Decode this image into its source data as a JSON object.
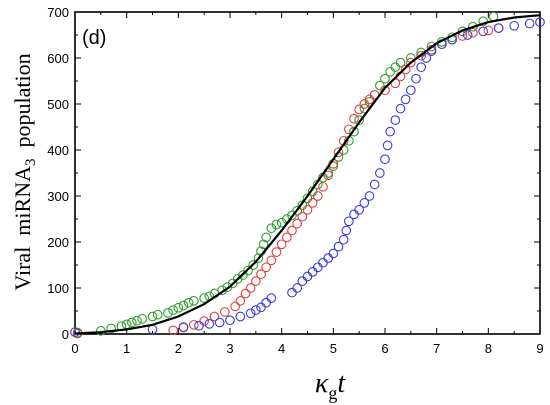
{
  "chart_data": {
    "type": "scatter",
    "panel_label": "(d)",
    "xlabel": {
      "main": "κ",
      "sub": "g",
      "rest": "t"
    },
    "ylabel": {
      "main": "Viral  miRNA",
      "sub": "3",
      "rest": "  population"
    },
    "xlim": [
      0,
      9
    ],
    "ylim": [
      0,
      700
    ],
    "x_ticks": [
      "0",
      "1",
      "2",
      "3",
      "4",
      "5",
      "6",
      "7",
      "8",
      "9"
    ],
    "y_ticks": [
      "0",
      "100",
      "200",
      "300",
      "400",
      "500",
      "600",
      "700"
    ],
    "grid": false,
    "series": [
      {
        "color": "#2ca02c",
        "marker": "open-circle",
        "points": [
          [
            0.05,
            3
          ],
          [
            0.5,
            7
          ],
          [
            0.7,
            12
          ],
          [
            0.9,
            17
          ],
          [
            1.0,
            21
          ],
          [
            1.1,
            25
          ],
          [
            1.2,
            29
          ],
          [
            1.3,
            33
          ],
          [
            1.5,
            38
          ],
          [
            1.6,
            42
          ],
          [
            1.8,
            46
          ],
          [
            1.9,
            52
          ],
          [
            2.0,
            57
          ],
          [
            2.1,
            62
          ],
          [
            2.2,
            68
          ],
          [
            2.3,
            72
          ],
          [
            2.5,
            78
          ],
          [
            2.6,
            82
          ],
          [
            2.7,
            88
          ],
          [
            2.85,
            95
          ],
          [
            2.95,
            102
          ],
          [
            3.05,
            110
          ],
          [
            3.15,
            120
          ],
          [
            3.25,
            128
          ],
          [
            3.35,
            138
          ],
          [
            3.45,
            150
          ],
          [
            3.55,
            165
          ],
          [
            3.6,
            180
          ],
          [
            3.65,
            195
          ],
          [
            3.7,
            210
          ],
          [
            3.8,
            230
          ],
          [
            3.9,
            238
          ],
          [
            4.0,
            242
          ],
          [
            4.1,
            250
          ],
          [
            4.2,
            258
          ],
          [
            4.3,
            268
          ],
          [
            4.4,
            280
          ],
          [
            4.5,
            295
          ],
          [
            4.6,
            310
          ],
          [
            4.7,
            325
          ],
          [
            4.8,
            340
          ],
          [
            4.9,
            350
          ],
          [
            5.0,
            365
          ],
          [
            5.1,
            385
          ],
          [
            5.2,
            400
          ],
          [
            5.3,
            420
          ],
          [
            5.4,
            440
          ],
          [
            5.5,
            465
          ],
          [
            5.6,
            490
          ],
          [
            5.7,
            505
          ],
          [
            5.8,
            520
          ],
          [
            5.9,
            540
          ],
          [
            6.0,
            555
          ],
          [
            6.1,
            570
          ],
          [
            6.2,
            580
          ],
          [
            6.3,
            590
          ],
          [
            6.5,
            600
          ],
          [
            6.7,
            612
          ],
          [
            6.9,
            625
          ],
          [
            7.1,
            635
          ],
          [
            7.3,
            645
          ],
          [
            7.5,
            658
          ],
          [
            7.7,
            668
          ],
          [
            7.9,
            680
          ],
          [
            8.1,
            690
          ]
        ]
      },
      {
        "color": "#e04040",
        "marker": "open-circle",
        "points": [
          [
            0.05,
            1
          ],
          [
            1.9,
            8
          ],
          [
            2.1,
            14
          ],
          [
            2.3,
            20
          ],
          [
            2.5,
            28
          ],
          [
            2.7,
            38
          ],
          [
            2.9,
            48
          ],
          [
            3.1,
            60
          ],
          [
            3.2,
            72
          ],
          [
            3.3,
            88
          ],
          [
            3.4,
            100
          ],
          [
            3.5,
            115
          ],
          [
            3.6,
            130
          ],
          [
            3.7,
            145
          ],
          [
            3.8,
            160
          ],
          [
            3.9,
            178
          ],
          [
            4.0,
            195
          ],
          [
            4.1,
            210
          ],
          [
            4.2,
            225
          ],
          [
            4.3,
            240
          ],
          [
            4.4,
            255
          ],
          [
            4.5,
            270
          ],
          [
            4.6,
            285
          ],
          [
            4.7,
            300
          ],
          [
            4.8,
            320
          ],
          [
            4.9,
            345
          ],
          [
            5.0,
            370
          ],
          [
            5.1,
            395
          ],
          [
            5.2,
            420
          ],
          [
            5.3,
            445
          ],
          [
            5.4,
            468
          ],
          [
            5.5,
            488
          ],
          [
            5.6,
            500
          ],
          [
            5.7,
            510
          ],
          [
            5.8,
            520
          ],
          [
            6.0,
            530
          ],
          [
            6.2,
            545
          ],
          [
            6.3,
            560
          ],
          [
            6.4,
            575
          ],
          [
            6.5,
            590
          ],
          [
            6.7,
            605
          ],
          [
            6.9,
            618
          ],
          [
            7.1,
            630
          ],
          [
            7.3,
            640
          ],
          [
            7.5,
            648
          ],
          [
            7.7,
            655
          ],
          [
            8.0,
            660
          ],
          [
            8.2,
            665
          ]
        ]
      },
      {
        "color": "#3b3bdb",
        "marker": "open-circle",
        "points": [
          [
            0.0,
            4
          ],
          [
            1.5,
            10
          ],
          [
            2.1,
            15
          ],
          [
            2.4,
            18
          ],
          [
            2.6,
            22
          ],
          [
            2.8,
            25
          ],
          [
            3.0,
            30
          ],
          [
            3.2,
            38
          ],
          [
            3.4,
            45
          ],
          [
            3.5,
            52
          ],
          [
            3.6,
            58
          ],
          [
            3.7,
            68
          ],
          [
            3.8,
            78
          ],
          [
            4.2,
            90
          ],
          [
            4.3,
            100
          ],
          [
            4.4,
            115
          ],
          [
            4.5,
            125
          ],
          [
            4.6,
            135
          ],
          [
            4.7,
            145
          ],
          [
            4.8,
            155
          ],
          [
            4.9,
            165
          ],
          [
            5.0,
            175
          ],
          [
            5.1,
            190
          ],
          [
            5.2,
            205
          ],
          [
            5.25,
            225
          ],
          [
            5.3,
            245
          ],
          [
            5.4,
            260
          ],
          [
            5.5,
            270
          ],
          [
            5.6,
            285
          ],
          [
            5.7,
            300
          ],
          [
            5.8,
            325
          ],
          [
            5.9,
            350
          ],
          [
            6.0,
            380
          ],
          [
            6.05,
            410
          ],
          [
            6.1,
            440
          ],
          [
            6.2,
            465
          ],
          [
            6.3,
            490
          ],
          [
            6.4,
            510
          ],
          [
            6.5,
            530
          ],
          [
            6.6,
            555
          ],
          [
            6.7,
            580
          ],
          [
            6.8,
            600
          ],
          [
            6.9,
            615
          ],
          [
            7.1,
            630
          ],
          [
            7.3,
            640
          ],
          [
            7.6,
            650
          ],
          [
            7.9,
            658
          ],
          [
            8.2,
            665
          ],
          [
            8.5,
            670
          ],
          [
            8.8,
            675
          ],
          [
            9.0,
            678
          ]
        ]
      },
      {
        "color": "#000000",
        "marker": "line",
        "points": [
          [
            0.0,
            1
          ],
          [
            0.5,
            4
          ],
          [
            1.0,
            10
          ],
          [
            1.5,
            20
          ],
          [
            2.0,
            38
          ],
          [
            2.5,
            65
          ],
          [
            3.0,
            103
          ],
          [
            3.5,
            157
          ],
          [
            4.0,
            225
          ],
          [
            4.5,
            300
          ],
          [
            5.0,
            380
          ],
          [
            5.5,
            460
          ],
          [
            6.0,
            535
          ],
          [
            6.5,
            590
          ],
          [
            7.0,
            632
          ],
          [
            7.5,
            660
          ],
          [
            8.0,
            678
          ],
          [
            8.5,
            688
          ],
          [
            9.0,
            693
          ]
        ]
      }
    ]
  }
}
